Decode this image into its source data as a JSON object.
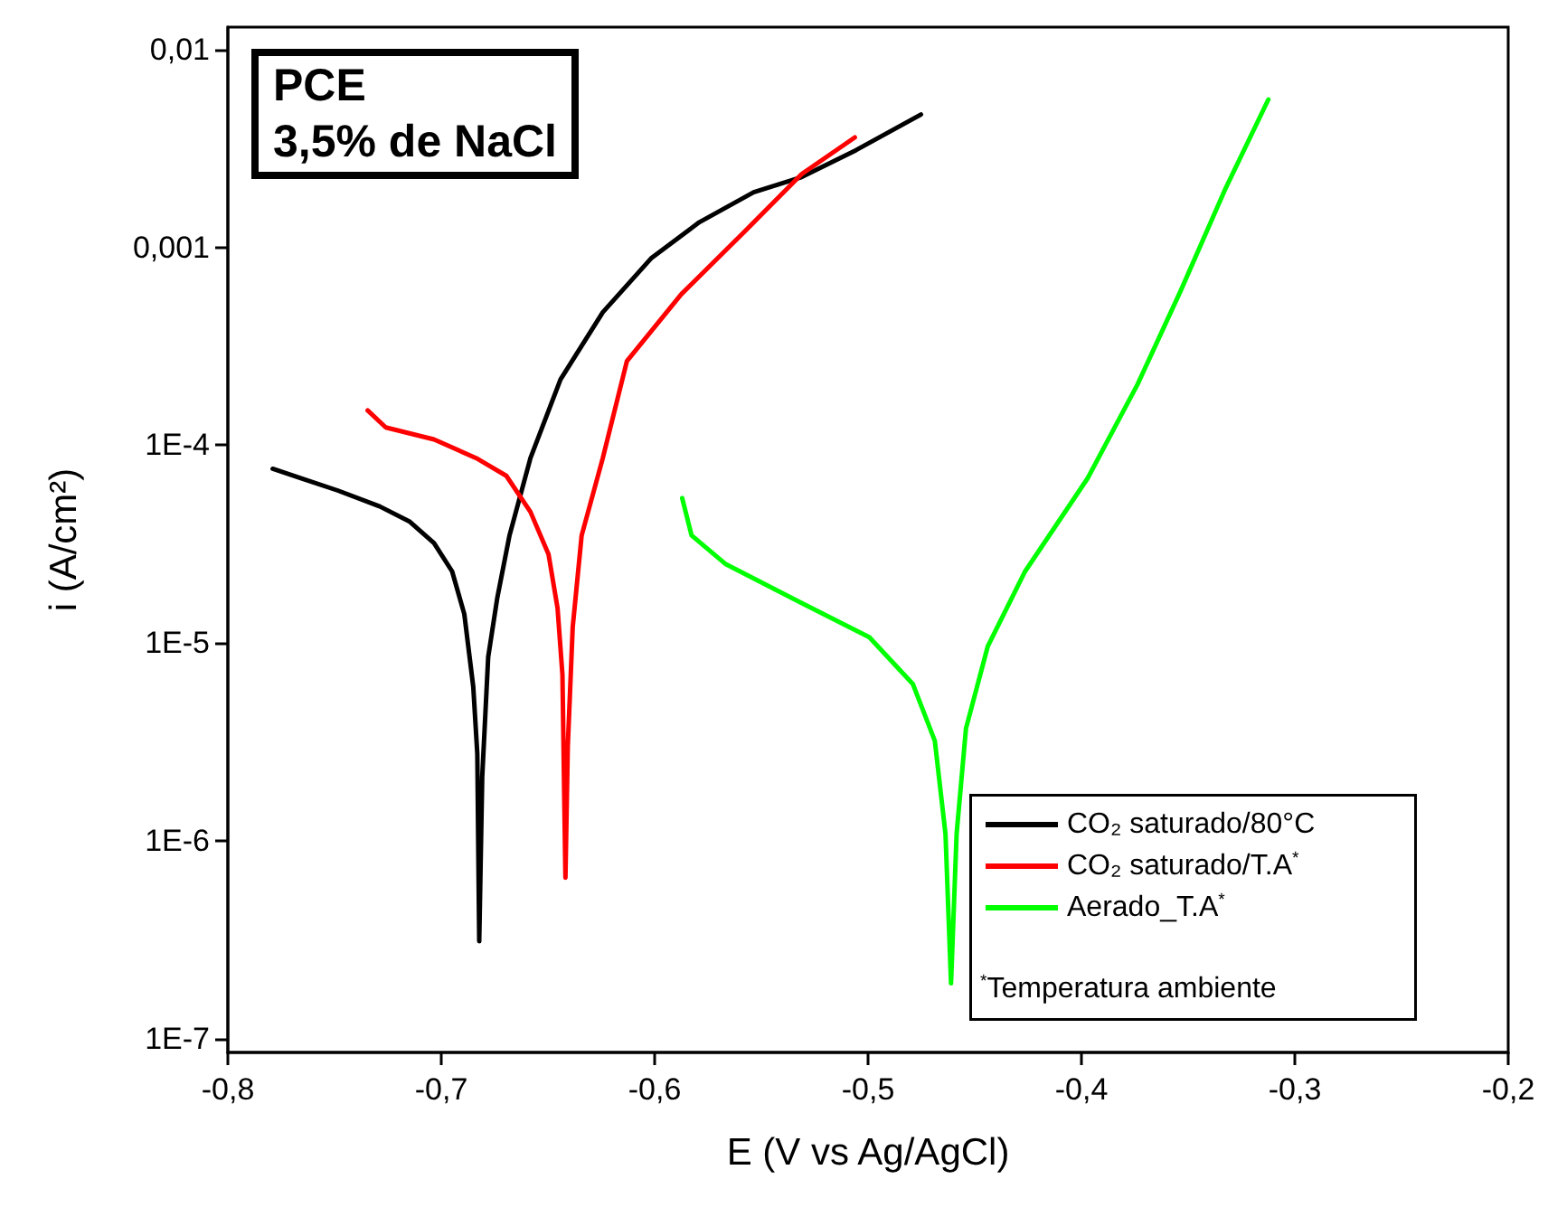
{
  "chart_data": {
    "type": "line",
    "title": "PCE",
    "subtitle": "3,5% de NaCl",
    "xlabel": "E (V vs Ag/AgCl)",
    "ylabel": "i (A/cm²)",
    "log": "y",
    "grid": false,
    "legend": "bottom right",
    "marker": "none",
    "line_style": "solid",
    "xlim": [
      -0.8,
      -0.2
    ],
    "xticks": [
      {
        "value": -0.8,
        "label": "-0,8"
      },
      {
        "value": -0.7,
        "label": "-0,7"
      },
      {
        "value": -0.6,
        "label": "-0,6"
      },
      {
        "value": -0.5,
        "label": "-0,5"
      },
      {
        "value": -0.4,
        "label": "-0,4"
      },
      {
        "value": -0.3,
        "label": "-0,3"
      },
      {
        "value": -0.2,
        "label": "-0,2"
      }
    ],
    "ylim": [
      8.5e-08,
      0.013
    ],
    "yticks": [
      {
        "value": 1e-07,
        "label": "1E-7"
      },
      {
        "value": 1e-06,
        "label": "1E-6"
      },
      {
        "value": 1e-05,
        "label": "1E-5"
      },
      {
        "value": 0.0001,
        "label": "1E-4"
      },
      {
        "value": 0.001,
        "label": "0,001"
      },
      {
        "value": 0.01,
        "label": "0,01"
      }
    ],
    "annotations": [
      "$^{*}$Temperatura ambiente"
    ],
    "series": [
      {
        "name": "CO₂ saturado/80°C",
        "color": "#000000",
        "x": [
          -0.779,
          -0.7655,
          -0.7485,
          -0.7288,
          -0.7147,
          -0.7034,
          -0.6949,
          -0.6892,
          -0.685,
          -0.6831,
          -0.6822,
          -0.6808,
          -0.678,
          -0.6737,
          -0.668,
          -0.6582,
          -0.6441,
          -0.6243,
          -0.6017,
          -0.5791,
          -0.5536,
          -0.5311,
          -0.5057,
          -0.4752
        ],
        "values": [
          7.6e-05,
          6.8e-05,
          5.9e-05,
          4.9e-05,
          4.1e-05,
          3.2e-05,
          2.3e-05,
          1.4e-05,
          6e-06,
          2.75e-06,
          3.1e-07,
          2.1e-06,
          8.5e-06,
          1.7e-05,
          3.5e-05,
          8.6e-05,
          0.000215,
          0.00047,
          0.00088,
          0.00134,
          0.0019,
          0.00227,
          0.0031,
          0.0047
        ]
      },
      {
        "name": "CO₂ saturado/T.A$^{*}$",
        "color": "#ff0000",
        "x": [
          -0.7345,
          -0.726,
          -0.7034,
          -0.6836,
          -0.6695,
          -0.6582,
          -0.6497,
          -0.6455,
          -0.6432,
          -0.6418,
          -0.6407,
          -0.6384,
          -0.6342,
          -0.6243,
          -0.613,
          -0.5875,
          -0.5593,
          -0.5311,
          -0.5062
        ],
        "values": [
          0.00015,
          0.000123,
          0.000107,
          8.6e-05,
          7e-05,
          4.6e-05,
          2.8e-05,
          1.5e-05,
          6.9e-06,
          6.5e-07,
          3e-06,
          1.2e-05,
          3.5e-05,
          8.6e-05,
          0.000266,
          0.00058,
          0.00116,
          0.00235,
          0.0036
        ]
      },
      {
        "name": "Aerado_T.A$^{*}$",
        "color": "#00ff00",
        "x": [
          -0.5871,
          -0.5827,
          -0.5666,
          -0.5315,
          -0.4994,
          -0.479,
          -0.4687,
          -0.4637,
          -0.4611,
          -0.4585,
          -0.4541,
          -0.4439,
          -0.4264,
          -0.3971,
          -0.3737,
          -0.3533,
          -0.3329,
          -0.3124
        ],
        "values": [
          5.4e-05,
          3.5e-05,
          2.5e-05,
          1.6e-05,
          1.07e-05,
          6.2e-06,
          3.2e-06,
          1.08e-06,
          1.9e-07,
          1.08e-06,
          3.7e-06,
          9.6e-06,
          2.3e-05,
          6.8e-05,
          0.000203,
          0.00061,
          0.00194,
          0.0056
        ]
      }
    ]
  }
}
